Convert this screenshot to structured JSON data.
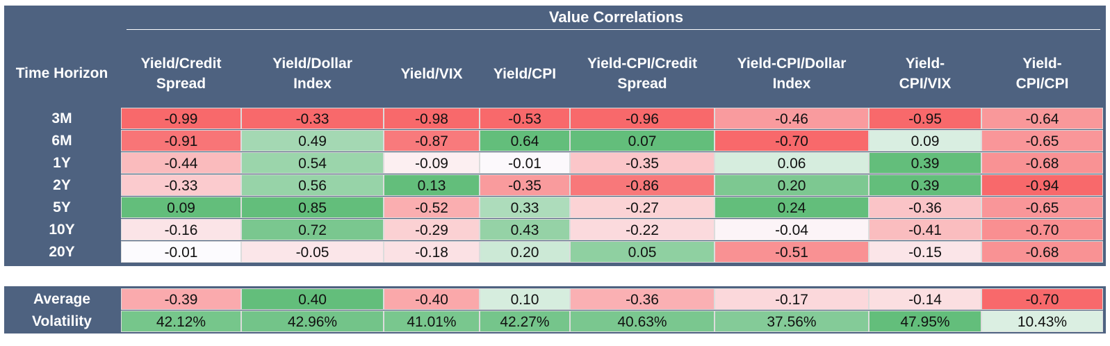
{
  "chart_data": {
    "type": "table",
    "title": "Value Correlations",
    "row_header_label": "Time Horizon",
    "columns": [
      "Yield/Credit\nSpread",
      "Yield/Dollar\nIndex",
      "Yield/VIX",
      "Yield/CPI",
      "Yield-CPI/Credit\nSpread",
      "Yield-CPI/Dollar\nIndex",
      "Yield-\nCPI/VIX",
      "Yield-\nCPI/CPI"
    ],
    "rows": [
      {
        "label": "3M",
        "values": [
          "-0.99",
          "-0.33",
          "-0.98",
          "-0.53",
          "-0.96",
          "-0.46",
          "-0.95",
          "-0.64"
        ]
      },
      {
        "label": "6M",
        "values": [
          "-0.91",
          "0.49",
          "-0.87",
          "0.64",
          "0.07",
          "-0.70",
          "0.09",
          "-0.65"
        ]
      },
      {
        "label": "1Y",
        "values": [
          "-0.44",
          "0.54",
          "-0.09",
          "-0.01",
          "-0.35",
          "0.06",
          "0.39",
          "-0.68"
        ]
      },
      {
        "label": "2Y",
        "values": [
          "-0.33",
          "0.56",
          "0.13",
          "-0.35",
          "-0.86",
          "0.20",
          "0.39",
          "-0.94"
        ]
      },
      {
        "label": "5Y",
        "values": [
          "0.09",
          "0.85",
          "-0.52",
          "0.33",
          "-0.27",
          "0.24",
          "-0.36",
          "-0.65"
        ]
      },
      {
        "label": "10Y",
        "values": [
          "-0.16",
          "0.72",
          "-0.29",
          "0.43",
          "-0.22",
          "-0.04",
          "-0.41",
          "-0.70"
        ]
      },
      {
        "label": "20Y",
        "values": [
          "-0.01",
          "-0.05",
          "-0.18",
          "0.20",
          "0.05",
          "-0.51",
          "-0.15",
          "-0.68"
        ]
      }
    ],
    "summary_rows": [
      {
        "label": "Average",
        "values": [
          "-0.39",
          "0.40",
          "-0.40",
          "0.10",
          "-0.36",
          "-0.17",
          "-0.14",
          "-0.70"
        ]
      },
      {
        "label": "Volatility",
        "values": [
          "42.12%",
          "42.96%",
          "41.01%",
          "42.27%",
          "40.63%",
          "37.56%",
          "47.95%",
          "10.43%"
        ]
      }
    ],
    "colors": {
      "header_background": "#4e6280",
      "header_text": "#ffffff",
      "negative": "#f8696b",
      "neutral": "#fcfcff",
      "positive": "#63be7b"
    }
  }
}
